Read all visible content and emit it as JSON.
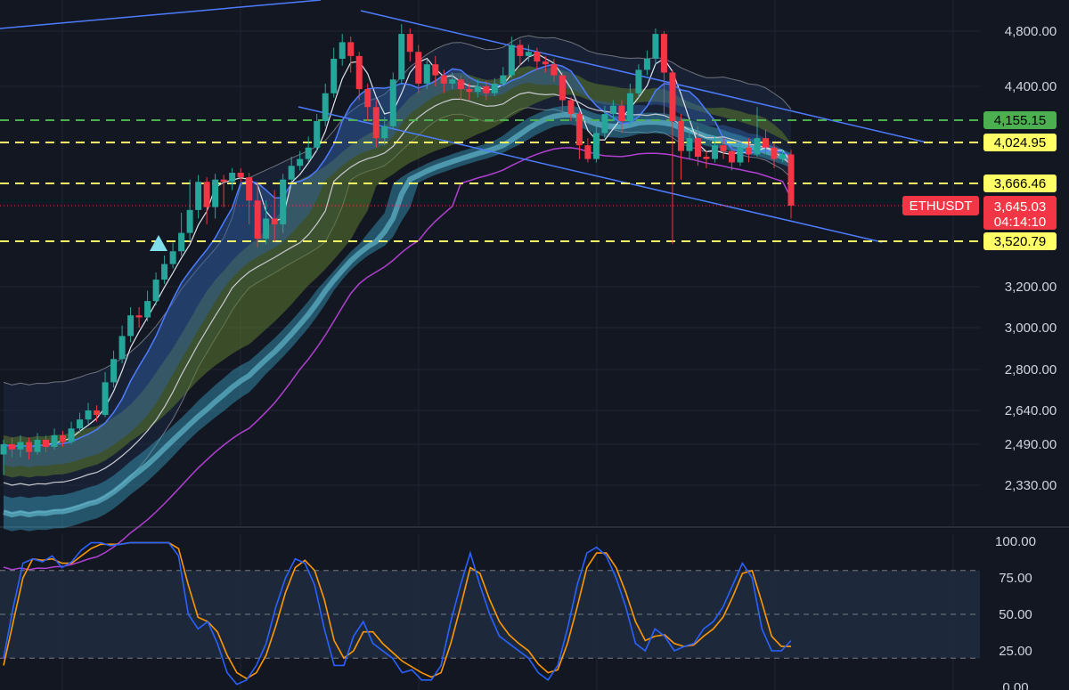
{
  "chart_data": {
    "type": "candlestick",
    "symbol": "ETHUSDT",
    "price_axis": {
      "ticks": [
        "4,800.00",
        "4,400.00",
        "3,200.00",
        "3,000.00",
        "2,800.00",
        "2,640.00",
        "2,490.00",
        "2,330.00"
      ]
    },
    "price_labels": [
      {
        "value": 4155.15,
        "text": "4,155.15",
        "bg": "#4caf50",
        "fg": "#000000"
      },
      {
        "value": 4024.95,
        "text": "4,024.95",
        "bg": "#ffff66",
        "fg": "#000000"
      },
      {
        "value": 3666.46,
        "text": "3,666.46",
        "bg": "#ffff66",
        "fg": "#000000"
      },
      {
        "value": 3520.79,
        "text": "3,520.79",
        "bg": "#ffff66",
        "fg": "#000000"
      }
    ],
    "last_price": {
      "text": "3,645.03",
      "countdown": "04:14:10",
      "color": "#f23645"
    },
    "horizontal_lines": [
      {
        "value": 4155.15,
        "color": "#4caf50",
        "style": "dashed"
      },
      {
        "value": 4024.95,
        "color": "#ffff66",
        "style": "dashed"
      },
      {
        "value": 3666.46,
        "color": "#ffff66",
        "style": "dashed"
      },
      {
        "value": 3520.79,
        "color": "#ffff66",
        "style": "dashed"
      }
    ],
    "oscillator": {
      "type": "stochastic",
      "ticks": [
        "100.00",
        "75.00",
        "50.00",
        "25.00",
        "0.00"
      ],
      "upper_band": 80,
      "lower_band": 20,
      "k_color": "#2962ff",
      "d_color": "#ff9800",
      "k_values": [
        20,
        55,
        85,
        88,
        86,
        90,
        82,
        86,
        94,
        99,
        99,
        97,
        98,
        99,
        99,
        99,
        99,
        99,
        90,
        50,
        40,
        45,
        30,
        10,
        2,
        5,
        15,
        30,
        55,
        75,
        88,
        85,
        70,
        40,
        15,
        15,
        35,
        45,
        30,
        25,
        20,
        10,
        12,
        5,
        5,
        15,
        45,
        70,
        92,
        70,
        50,
        35,
        30,
        25,
        20,
        10,
        5,
        15,
        40,
        70,
        92,
        96,
        90,
        75,
        55,
        30,
        25,
        40,
        35,
        25,
        28,
        30,
        40,
        45,
        55,
        70,
        85,
        75,
        40,
        25,
        25,
        32
      ],
      "d_values": [
        15,
        45,
        75,
        88,
        87,
        88,
        85,
        85,
        90,
        95,
        98,
        98,
        98,
        99,
        99,
        99,
        99,
        99,
        95,
        70,
        48,
        45,
        38,
        22,
        10,
        6,
        10,
        22,
        42,
        65,
        82,
        87,
        80,
        60,
        32,
        20,
        25,
        38,
        38,
        30,
        24,
        18,
        14,
        10,
        7,
        10,
        30,
        55,
        82,
        78,
        60,
        45,
        36,
        30,
        25,
        16,
        10,
        12,
        30,
        55,
        82,
        92,
        92,
        82,
        65,
        45,
        32,
        35,
        36,
        30,
        28,
        29,
        35,
        40,
        48,
        62,
        78,
        80,
        58,
        35,
        28,
        28
      ]
    },
    "candles": [
      [
        2450,
        2490,
        2370,
        2510
      ],
      [
        2490,
        2470,
        2440,
        2520
      ],
      [
        2470,
        2500,
        2440,
        2530
      ],
      [
        2500,
        2460,
        2430,
        2520
      ],
      [
        2460,
        2510,
        2450,
        2540
      ],
      [
        2510,
        2480,
        2460,
        2530
      ],
      [
        2480,
        2530,
        2470,
        2560
      ],
      [
        2530,
        2500,
        2480,
        2550
      ],
      [
        2500,
        2560,
        2490,
        2590
      ],
      [
        2560,
        2600,
        2540,
        2630
      ],
      [
        2600,
        2640,
        2580,
        2670
      ],
      [
        2640,
        2620,
        2590,
        2660
      ],
      [
        2620,
        2750,
        2610,
        2790
      ],
      [
        2750,
        2850,
        2730,
        2890
      ],
      [
        2850,
        2960,
        2830,
        3010
      ],
      [
        2960,
        3060,
        2930,
        3100
      ],
      [
        3060,
        3050,
        3000,
        3100
      ],
      [
        3050,
        3130,
        3030,
        3180
      ],
      [
        3130,
        3250,
        3110,
        3300
      ],
      [
        3250,
        3360,
        3220,
        3420
      ],
      [
        3360,
        3450,
        3330,
        3510
      ],
      [
        3450,
        3550,
        3420,
        3620
      ],
      [
        3550,
        3630,
        3520,
        3700
      ],
      [
        3630,
        3680,
        3600,
        3740
      ],
      [
        3680,
        3640,
        3580,
        3720
      ],
      [
        3640,
        3700,
        3600,
        3750
      ],
      [
        3700,
        3680,
        3640,
        3740
      ],
      [
        3680,
        3760,
        3660,
        3800
      ],
      [
        3760,
        3720,
        3680,
        3800
      ],
      [
        3720,
        3650,
        3580,
        3760
      ],
      [
        3650,
        3530,
        3480,
        3680
      ],
      [
        3530,
        3600,
        3500,
        3650
      ],
      [
        3600,
        3580,
        3520,
        3660
      ],
      [
        3580,
        3700,
        3550,
        3750
      ],
      [
        3700,
        3820,
        3680,
        3900
      ],
      [
        3820,
        3880,
        3780,
        3950
      ],
      [
        3880,
        3980,
        3850,
        4060
      ],
      [
        3980,
        4150,
        3950,
        4200
      ],
      [
        4150,
        4350,
        4120,
        4420
      ],
      [
        4350,
        4600,
        4320,
        4680
      ],
      [
        4600,
        4720,
        4550,
        4780
      ],
      [
        4720,
        4620,
        4500,
        4760
      ],
      [
        4620,
        4380,
        4300,
        4650
      ],
      [
        4380,
        4250,
        4150,
        4420
      ],
      [
        4250,
        4050,
        3980,
        4300
      ],
      [
        4050,
        4120,
        4000,
        4180
      ],
      [
        4120,
        4450,
        4100,
        4500
      ],
      [
        4450,
        4780,
        4420,
        4850
      ],
      [
        4780,
        4650,
        4580,
        4820
      ],
      [
        4650,
        4420,
        4350,
        4700
      ],
      [
        4420,
        4560,
        4380,
        4600
      ],
      [
        4560,
        4480,
        4400,
        4620
      ],
      [
        4480,
        4420,
        4350,
        4520
      ],
      [
        4420,
        4450,
        4380,
        4500
      ],
      [
        4450,
        4380,
        4300,
        4480
      ],
      [
        4380,
        4360,
        4300,
        4420
      ],
      [
        4360,
        4400,
        4320,
        4450
      ],
      [
        4400,
        4350,
        4300,
        4440
      ],
      [
        4350,
        4420,
        4330,
        4460
      ],
      [
        4420,
        4480,
        4400,
        4540
      ],
      [
        4480,
        4700,
        4460,
        4760
      ],
      [
        4700,
        4620,
        4550,
        4740
      ],
      [
        4620,
        4650,
        4580,
        4700
      ],
      [
        4650,
        4580,
        4520,
        4680
      ],
      [
        4580,
        4560,
        4500,
        4620
      ],
      [
        4560,
        4480,
        4430,
        4600
      ],
      [
        4480,
        4300,
        4220,
        4500
      ],
      [
        4300,
        4200,
        4150,
        4320
      ],
      [
        4200,
        4000,
        3880,
        4220
      ],
      [
        4000,
        3880,
        3850,
        4050
      ],
      [
        3880,
        4080,
        3850,
        4120
      ],
      [
        4080,
        4200,
        4050,
        4260
      ],
      [
        4200,
        4260,
        4150,
        4300
      ],
      [
        4260,
        4150,
        4080,
        4300
      ],
      [
        4150,
        4350,
        4120,
        4420
      ],
      [
        4350,
        4520,
        4320,
        4560
      ],
      [
        4520,
        4600,
        4480,
        4660
      ],
      [
        4600,
        4780,
        4560,
        4820
      ],
      [
        4780,
        4500,
        4200,
        4800
      ],
      [
        4500,
        4150,
        3500,
        4520
      ],
      [
        4150,
        3950,
        3700,
        4200
      ],
      [
        3950,
        4050,
        3880,
        4100
      ],
      [
        4050,
        3900,
        3820,
        4120
      ],
      [
        3900,
        3880,
        3800,
        3950
      ],
      [
        3880,
        4000,
        3850,
        4060
      ],
      [
        4000,
        3950,
        3880,
        4050
      ],
      [
        3950,
        3850,
        3780,
        4000
      ],
      [
        3850,
        3980,
        3820,
        4020
      ],
      [
        3980,
        3920,
        3850,
        4050
      ],
      [
        3920,
        4050,
        3900,
        4250
      ],
      [
        4050,
        3980,
        3920,
        4100
      ],
      [
        3980,
        3880,
        3800,
        4020
      ],
      [
        3880,
        3920,
        3850,
        3960
      ],
      [
        3920,
        3645,
        3600,
        3960
      ]
    ]
  }
}
